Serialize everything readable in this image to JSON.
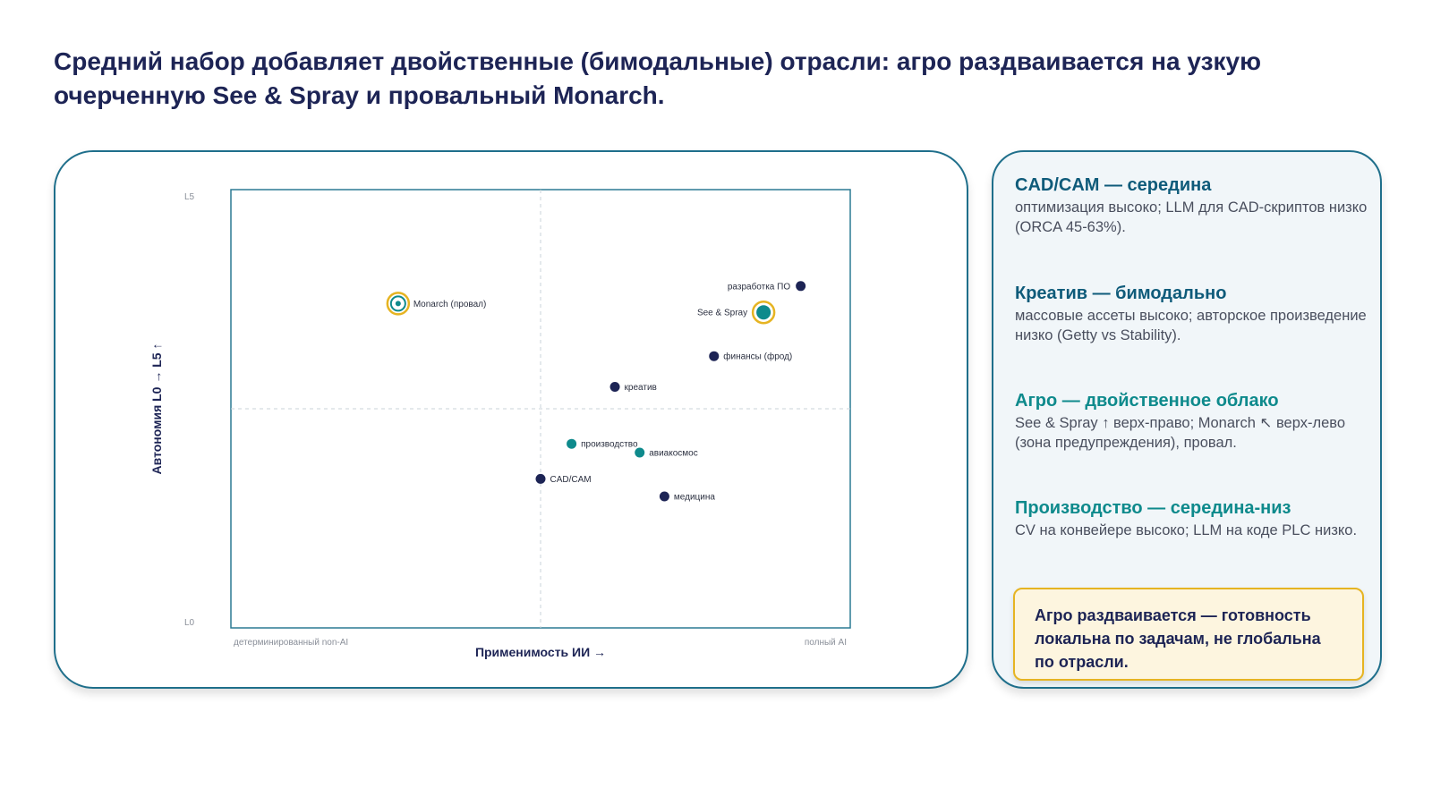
{
  "title": "Средний набор добавляет двойственные (бимодальные) отрасли: агро раздваивается на узкую очерченную See & Spray и провальный Monarch.",
  "colors": {
    "navy": "#1d2455",
    "teal": "#0e8a8c",
    "gold": "#e6b422",
    "border": "#1f6f8b"
  },
  "chart_data": {
    "type": "scatter",
    "xlabel": "Применимость ИИ →",
    "ylabel": "Автономия L0 → L5 ↑",
    "x_min_label": "детерминированный non-AI",
    "x_max_label": "полный AI",
    "y_min_label": "L0",
    "y_max_label": "L5",
    "xlim": [
      0,
      1
    ],
    "ylim": [
      0,
      5
    ],
    "grid": "center-dashed",
    "points": [
      {
        "label": "разработка ПО",
        "x": 0.92,
        "y": 3.9,
        "color": "navy",
        "style": "dot",
        "label_side": "left"
      },
      {
        "label": "See & Spray",
        "x": 0.86,
        "y": 3.6,
        "color": "teal",
        "style": "highlight",
        "label_side": "left"
      },
      {
        "label": "финансы (фрод)",
        "x": 0.78,
        "y": 3.1,
        "color": "navy",
        "style": "dot",
        "label_side": "right"
      },
      {
        "label": "креатив",
        "x": 0.62,
        "y": 2.75,
        "color": "navy",
        "style": "dot",
        "label_side": "right"
      },
      {
        "label": "Monarch (провал)",
        "x": 0.27,
        "y": 3.7,
        "color": "teal",
        "style": "ring",
        "label_side": "right"
      },
      {
        "label": "производство",
        "x": 0.55,
        "y": 2.1,
        "color": "teal",
        "style": "dot",
        "label_side": "right"
      },
      {
        "label": "авиакосмос",
        "x": 0.66,
        "y": 2.0,
        "color": "teal",
        "style": "dot",
        "label_side": "right"
      },
      {
        "label": "CAD/CAM",
        "x": 0.5,
        "y": 1.7,
        "color": "navy",
        "style": "dot",
        "label_side": "right"
      },
      {
        "label": "медицина",
        "x": 0.7,
        "y": 1.5,
        "color": "navy",
        "style": "dot",
        "label_side": "right"
      }
    ]
  },
  "sidebar": {
    "sections": [
      {
        "title": "CAD/CAM — середина",
        "body": "оптимизация высоко; LLM для CAD-скриптов низко (ORCA 45-63%)."
      },
      {
        "title": "Креатив — бимодально",
        "body": "массовые ассеты высоко; авторское произведение низко (Getty vs Stability)."
      },
      {
        "title": "Агро — двойственное облако",
        "body": "See & Spray ↑ верх-право; Monarch ↖ верх-лево (зона предупреждения), провал."
      },
      {
        "title": "Производство — середина-низ",
        "body": "CV на конвейере высоко; LLM на коде PLC низко."
      }
    ],
    "callout": "Агро раздваивается — готовность локальна по задачам, не глобальна по отрасли."
  }
}
